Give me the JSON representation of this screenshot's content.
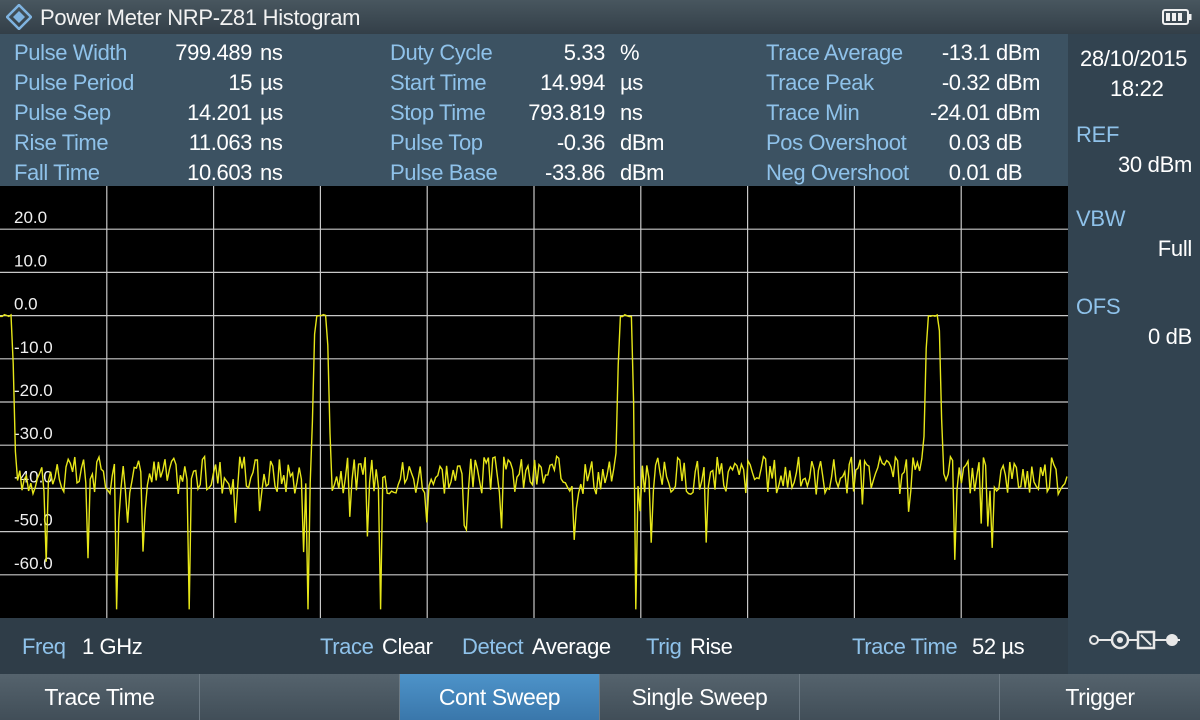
{
  "window": {
    "title": "Power Meter NRP-Z81 Histogram"
  },
  "measurements": {
    "left": [
      {
        "label": "Pulse Width",
        "value": "799.489",
        "unit": "ns"
      },
      {
        "label": "Pulse Period",
        "value": "15",
        "unit": "µs"
      },
      {
        "label": "Pulse Sep",
        "value": "14.201",
        "unit": "µs"
      },
      {
        "label": "Rise Time",
        "value": "11.063",
        "unit": "ns"
      },
      {
        "label": "Fall Time",
        "value": "10.603",
        "unit": "ns"
      }
    ],
    "middle": [
      {
        "label": "Duty Cycle",
        "value": "5.33",
        "unit": "%"
      },
      {
        "label": "Start Time",
        "value": "14.994",
        "unit": "µs"
      },
      {
        "label": "Stop Time",
        "value": "793.819",
        "unit": "ns"
      },
      {
        "label": "Pulse Top",
        "value": "-0.36",
        "unit": "dBm"
      },
      {
        "label": "Pulse Base",
        "value": "-33.86",
        "unit": "dBm"
      }
    ],
    "right": [
      {
        "label": "Trace Average",
        "value": "-13.1",
        "unit": "dBm"
      },
      {
        "label": "Trace Peak",
        "value": "-0.32",
        "unit": "dBm"
      },
      {
        "label": "Trace Min",
        "value": "-24.01",
        "unit": "dBm"
      },
      {
        "label": "Pos Overshoot",
        "value": "0.03",
        "unit": "dB"
      },
      {
        "label": "Neg Overshoot",
        "value": "0.01",
        "unit": "dB"
      }
    ]
  },
  "side_panel": {
    "date": "28/10/2015",
    "time": "18:22",
    "ref_label": "REF",
    "ref_value": "30 dBm",
    "vbw_label": "VBW",
    "vbw_value": "Full",
    "ofs_label": "OFS",
    "ofs_value": "0 dB"
  },
  "status_bar": {
    "freq_label": "Freq",
    "freq_value": "1 GHz",
    "trace_label": "Trace",
    "trace_value": "Clear",
    "detect_label": "Detect",
    "detect_value": "Average",
    "trig_label": "Trig",
    "trig_value": "Rise",
    "trace_time_label": "Trace Time",
    "trace_time_value": "52 µs"
  },
  "softkeys": [
    {
      "label": "Trace Time",
      "active": false
    },
    {
      "label": "",
      "active": false
    },
    {
      "label": "Cont Sweep",
      "active": true
    },
    {
      "label": "Single Sweep",
      "active": false
    },
    {
      "label": "",
      "active": false
    },
    {
      "label": "Trigger",
      "active": false
    }
  ],
  "colors": {
    "trace": "#e6e619",
    "label": "#8fc2ea",
    "grid": "#c8c8c8",
    "accent": "#3f84bc"
  },
  "icons": [
    "rohde-schwarz-logo-icon",
    "battery-icon",
    "connection-status-icon"
  ],
  "trace_plot": {
    "y_tick_labels": [
      "20.0",
      "10.0",
      "0.0",
      "-10.0",
      "-20.0",
      "-30.0",
      "-40.0",
      "-50.0",
      "-60.0"
    ],
    "y_ticks": [
      20,
      10,
      0,
      -10,
      -20,
      -30,
      -40,
      -50,
      -60
    ],
    "ylim": [
      -70,
      30
    ],
    "x_divisions": 10,
    "pulse_top_dbm": 0,
    "noise_floor_dbm": -37,
    "pulse_positions": [
      0,
      0.295,
      0.58,
      0.868
    ]
  }
}
